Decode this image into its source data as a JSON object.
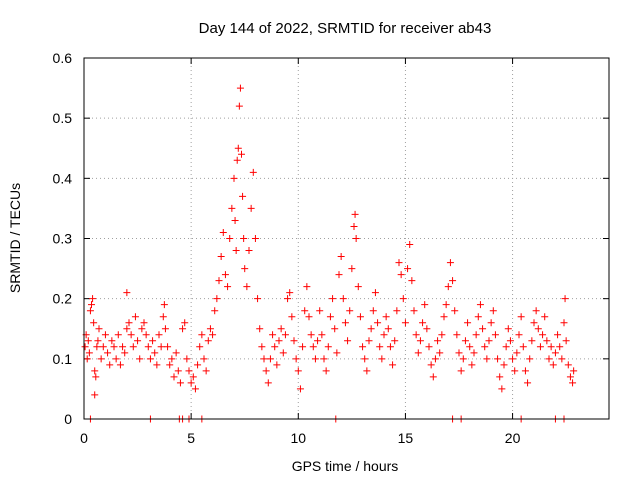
{
  "chart_data": {
    "type": "scatter",
    "title": "Day 144 of 2022, SRMTID for receiver ab43",
    "xlabel": "GPS time / hours",
    "ylabel": "SRMTID / TECUs",
    "xlim": [
      0,
      24.5
    ],
    "ylim": [
      0,
      0.6
    ],
    "x_ticks": [
      0,
      5,
      10,
      15,
      20
    ],
    "y_ticks": [
      0,
      0.1,
      0.2,
      0.3,
      0.4,
      0.5,
      0.6
    ],
    "x_tick_labels": [
      "0",
      "5",
      "10",
      "15",
      "20"
    ],
    "y_tick_labels": [
      "0",
      "0.1",
      "0.2",
      "0.3",
      "0.4",
      "0.5",
      "0.6"
    ],
    "grid": true,
    "marker": "+",
    "color": "#ff0000",
    "series": [
      {
        "name": "SRMTID",
        "points": [
          [
            0.05,
            0.12
          ],
          [
            0.1,
            0.14
          ],
          [
            0.15,
            0.1
          ],
          [
            0.2,
            0.13
          ],
          [
            0.25,
            0.11
          ],
          [
            0.3,
            0.18
          ],
          [
            0.35,
            0.19
          ],
          [
            0.4,
            0.2
          ],
          [
            0.45,
            0.16
          ],
          [
            0.5,
            0.08
          ],
          [
            0.5,
            0.04
          ],
          [
            0.55,
            0.07
          ],
          [
            0.6,
            0.12
          ],
          [
            0.65,
            0.13
          ],
          [
            0.7,
            0.15
          ],
          [
            0.8,
            0.1
          ],
          [
            0.9,
            0.12
          ],
          [
            1.0,
            0.14
          ],
          [
            1.1,
            0.11
          ],
          [
            1.2,
            0.09
          ],
          [
            1.3,
            0.13
          ],
          [
            1.4,
            0.12
          ],
          [
            1.5,
            0.1
          ],
          [
            1.6,
            0.14
          ],
          [
            1.7,
            0.09
          ],
          [
            1.8,
            0.12
          ],
          [
            1.9,
            0.11
          ],
          [
            2.0,
            0.15
          ],
          [
            2.0,
            0.21
          ],
          [
            2.1,
            0.16
          ],
          [
            2.2,
            0.14
          ],
          [
            2.3,
            0.12
          ],
          [
            2.4,
            0.17
          ],
          [
            2.5,
            0.13
          ],
          [
            2.6,
            0.1
          ],
          [
            2.7,
            0.15
          ],
          [
            2.8,
            0.16
          ],
          [
            2.9,
            0.14
          ],
          [
            3.0,
            0.12
          ],
          [
            3.1,
            0.1
          ],
          [
            3.2,
            0.13
          ],
          [
            3.3,
            0.11
          ],
          [
            3.4,
            0.09
          ],
          [
            3.5,
            0.14
          ],
          [
            3.6,
            0.12
          ],
          [
            3.7,
            0.17
          ],
          [
            3.75,
            0.19
          ],
          [
            3.8,
            0.15
          ],
          [
            3.9,
            0.12
          ],
          [
            4.0,
            0.09
          ],
          [
            4.1,
            0.1
          ],
          [
            4.2,
            0.07
          ],
          [
            4.3,
            0.11
          ],
          [
            4.4,
            0.08
          ],
          [
            4.5,
            0.06
          ],
          [
            4.6,
            0.15
          ],
          [
            4.7,
            0.16
          ],
          [
            4.8,
            0.1
          ],
          [
            4.9,
            0.08
          ],
          [
            5.0,
            0.06
          ],
          [
            5.1,
            0.07
          ],
          [
            5.2,
            0.05
          ],
          [
            5.3,
            0.09
          ],
          [
            5.4,
            0.12
          ],
          [
            5.5,
            0.14
          ],
          [
            5.6,
            0.1
          ],
          [
            5.7,
            0.08
          ],
          [
            5.8,
            0.13
          ],
          [
            5.9,
            0.15
          ],
          [
            6.0,
            0.14
          ],
          [
            6.1,
            0.18
          ],
          [
            6.2,
            0.2
          ],
          [
            6.3,
            0.23
          ],
          [
            6.4,
            0.27
          ],
          [
            6.5,
            0.31
          ],
          [
            6.6,
            0.24
          ],
          [
            6.7,
            0.22
          ],
          [
            6.8,
            0.3
          ],
          [
            6.9,
            0.35
          ],
          [
            7.0,
            0.4
          ],
          [
            7.05,
            0.33
          ],
          [
            7.1,
            0.28
          ],
          [
            7.15,
            0.43
          ],
          [
            7.2,
            0.45
          ],
          [
            7.25,
            0.52
          ],
          [
            7.3,
            0.55
          ],
          [
            7.35,
            0.44
          ],
          [
            7.4,
            0.37
          ],
          [
            7.45,
            0.3
          ],
          [
            7.5,
            0.25
          ],
          [
            7.6,
            0.22
          ],
          [
            7.7,
            0.28
          ],
          [
            7.8,
            0.35
          ],
          [
            7.9,
            0.41
          ],
          [
            8.0,
            0.3
          ],
          [
            8.1,
            0.2
          ],
          [
            8.2,
            0.15
          ],
          [
            8.3,
            0.12
          ],
          [
            8.4,
            0.1
          ],
          [
            8.5,
            0.08
          ],
          [
            8.6,
            0.06
          ],
          [
            8.7,
            0.1
          ],
          [
            8.8,
            0.14
          ],
          [
            8.9,
            0.12
          ],
          [
            9.0,
            0.09
          ],
          [
            9.1,
            0.13
          ],
          [
            9.2,
            0.15
          ],
          [
            9.3,
            0.11
          ],
          [
            9.4,
            0.14
          ],
          [
            9.5,
            0.2
          ],
          [
            9.6,
            0.21
          ],
          [
            9.7,
            0.17
          ],
          [
            9.8,
            0.13
          ],
          [
            9.9,
            0.1
          ],
          [
            10.0,
            0.08
          ],
          [
            10.1,
            0.05
          ],
          [
            10.2,
            0.12
          ],
          [
            10.3,
            0.18
          ],
          [
            10.4,
            0.22
          ],
          [
            10.5,
            0.17
          ],
          [
            10.6,
            0.14
          ],
          [
            10.7,
            0.12
          ],
          [
            10.8,
            0.1
          ],
          [
            10.9,
            0.13
          ],
          [
            11.0,
            0.18
          ],
          [
            11.1,
            0.14
          ],
          [
            11.2,
            0.1
          ],
          [
            11.3,
            0.08
          ],
          [
            11.4,
            0.12
          ],
          [
            11.5,
            0.17
          ],
          [
            11.6,
            0.2
          ],
          [
            11.7,
            0.15
          ],
          [
            11.8,
            0.11
          ],
          [
            11.9,
            0.24
          ],
          [
            12.0,
            0.27
          ],
          [
            12.1,
            0.2
          ],
          [
            12.2,
            0.16
          ],
          [
            12.3,
            0.13
          ],
          [
            12.4,
            0.18
          ],
          [
            12.5,
            0.25
          ],
          [
            12.6,
            0.32
          ],
          [
            12.65,
            0.34
          ],
          [
            12.7,
            0.3
          ],
          [
            12.8,
            0.22
          ],
          [
            12.9,
            0.17
          ],
          [
            13.0,
            0.12
          ],
          [
            13.1,
            0.1
          ],
          [
            13.2,
            0.08
          ],
          [
            13.3,
            0.13
          ],
          [
            13.4,
            0.15
          ],
          [
            13.5,
            0.18
          ],
          [
            13.6,
            0.21
          ],
          [
            13.7,
            0.16
          ],
          [
            13.8,
            0.12
          ],
          [
            13.9,
            0.1
          ],
          [
            14.0,
            0.14
          ],
          [
            14.1,
            0.17
          ],
          [
            14.2,
            0.15
          ],
          [
            14.3,
            0.12
          ],
          [
            14.4,
            0.09
          ],
          [
            14.5,
            0.13
          ],
          [
            14.6,
            0.18
          ],
          [
            14.7,
            0.26
          ],
          [
            14.8,
            0.24
          ],
          [
            14.9,
            0.2
          ],
          [
            15.0,
            0.16
          ],
          [
            15.1,
            0.25
          ],
          [
            15.2,
            0.29
          ],
          [
            15.3,
            0.23
          ],
          [
            15.4,
            0.18
          ],
          [
            15.5,
            0.14
          ],
          [
            15.6,
            0.11
          ],
          [
            15.7,
            0.13
          ],
          [
            15.8,
            0.16
          ],
          [
            15.9,
            0.19
          ],
          [
            16.0,
            0.15
          ],
          [
            16.1,
            0.12
          ],
          [
            16.2,
            0.09
          ],
          [
            16.3,
            0.07
          ],
          [
            16.4,
            0.1
          ],
          [
            16.5,
            0.13
          ],
          [
            16.6,
            0.11
          ],
          [
            16.7,
            0.14
          ],
          [
            16.8,
            0.17
          ],
          [
            16.9,
            0.19
          ],
          [
            17.0,
            0.22
          ],
          [
            17.1,
            0.26
          ],
          [
            17.2,
            0.23
          ],
          [
            17.3,
            0.18
          ],
          [
            17.4,
            0.14
          ],
          [
            17.5,
            0.11
          ],
          [
            17.6,
            0.08
          ],
          [
            17.7,
            0.1
          ],
          [
            17.8,
            0.13
          ],
          [
            17.9,
            0.16
          ],
          [
            18.0,
            0.12
          ],
          [
            18.1,
            0.09
          ],
          [
            18.2,
            0.11
          ],
          [
            18.3,
            0.14
          ],
          [
            18.4,
            0.17
          ],
          [
            18.5,
            0.19
          ],
          [
            18.6,
            0.15
          ],
          [
            18.7,
            0.12
          ],
          [
            18.8,
            0.1
          ],
          [
            18.9,
            0.13
          ],
          [
            19.0,
            0.16
          ],
          [
            19.1,
            0.18
          ],
          [
            19.2,
            0.14
          ],
          [
            19.3,
            0.1
          ],
          [
            19.4,
            0.07
          ],
          [
            19.5,
            0.05
          ],
          [
            19.6,
            0.09
          ],
          [
            19.7,
            0.12
          ],
          [
            19.8,
            0.15
          ],
          [
            19.9,
            0.13
          ],
          [
            20.0,
            0.1
          ],
          [
            20.1,
            0.08
          ],
          [
            20.2,
            0.11
          ],
          [
            20.3,
            0.14
          ],
          [
            20.4,
            0.17
          ],
          [
            20.5,
            0.12
          ],
          [
            20.6,
            0.08
          ],
          [
            20.7,
            0.06
          ],
          [
            20.8,
            0.1
          ],
          [
            20.9,
            0.13
          ],
          [
            21.0,
            0.16
          ],
          [
            21.1,
            0.18
          ],
          [
            21.2,
            0.15
          ],
          [
            21.3,
            0.12
          ],
          [
            21.4,
            0.14
          ],
          [
            21.5,
            0.17
          ],
          [
            21.6,
            0.13
          ],
          [
            21.7,
            0.1
          ],
          [
            21.8,
            0.12
          ],
          [
            21.9,
            0.09
          ],
          [
            22.0,
            0.11
          ],
          [
            22.1,
            0.14
          ],
          [
            22.2,
            0.12
          ],
          [
            22.3,
            0.1
          ],
          [
            22.4,
            0.16
          ],
          [
            22.45,
            0.2
          ],
          [
            22.5,
            0.13
          ],
          [
            22.6,
            0.09
          ],
          [
            22.7,
            0.07
          ],
          [
            22.8,
            0.06
          ],
          [
            22.85,
            0.08
          ],
          [
            0.3,
            0.0
          ],
          [
            3.1,
            0.0
          ],
          [
            4.45,
            0.0
          ],
          [
            4.6,
            0.0
          ],
          [
            4.9,
            0.0
          ],
          [
            5.5,
            0.0
          ],
          [
            11.75,
            0.0
          ],
          [
            17.2,
            0.0
          ],
          [
            17.6,
            0.0
          ],
          [
            20.4,
            0.0
          ],
          [
            22.0,
            0.0
          ],
          [
            22.4,
            0.0
          ]
        ]
      }
    ]
  }
}
